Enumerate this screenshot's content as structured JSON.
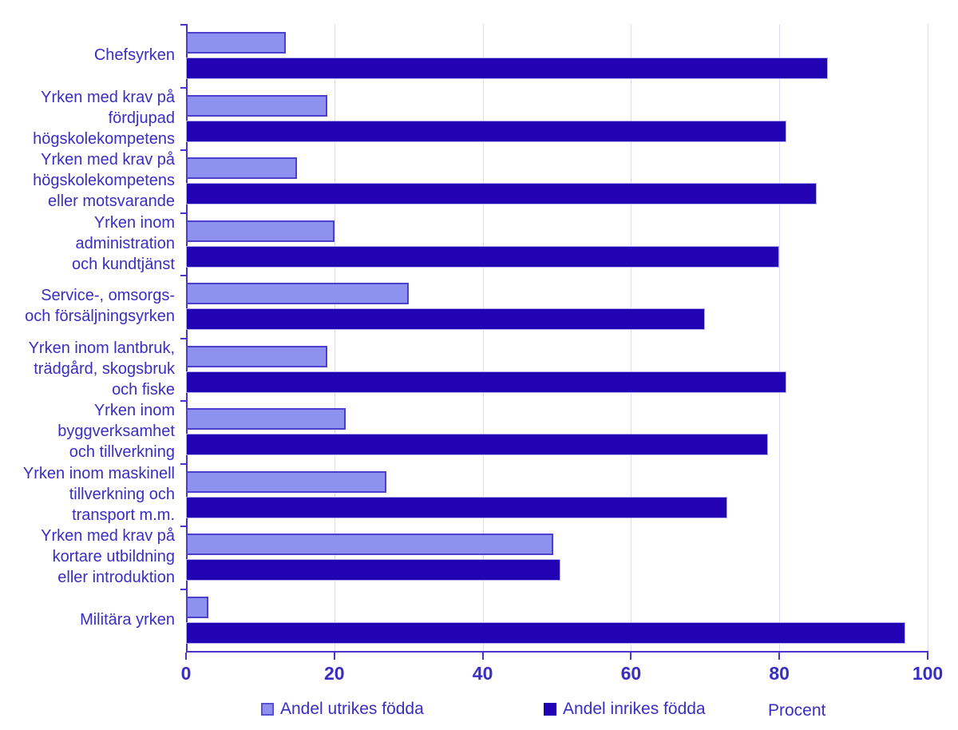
{
  "chart_data": {
    "type": "bar",
    "orientation": "horizontal",
    "title": "",
    "categories": [
      "Chefsyrken",
      "Yrken med krav på\nfördjupad\nhögskolekompetens",
      "Yrken med krav på\nhögskolekompetens\neller motsvarande",
      "Yrken inom\nadministration\noch kundtjänst",
      "Service-, omsorgs-\noch försäljningsyrken",
      "Yrken inom lantbruk,\nträdgård, skogsbruk\noch fiske",
      "Yrken inom\nbyggverksamhet\noch tillverkning",
      "Yrken inom maskinell\ntillverkning och\ntransport m.m.",
      "Yrken med krav på\nkortare utbildning\neller introduktion",
      "Militära yrken"
    ],
    "series": [
      {
        "name": "Andel utrikes födda",
        "color": "#8e91ee",
        "border_color": "#4b40ce",
        "values": [
          13.5,
          19,
          15,
          20,
          30,
          19,
          21.5,
          27,
          49.5,
          3
        ]
      },
      {
        "name": "Andel inrikes födda",
        "color": "#2103b4",
        "border_color": "#b3afec",
        "values": [
          86.5,
          81,
          85,
          80,
          70,
          81,
          78.5,
          73,
          50.5,
          97
        ]
      }
    ],
    "xlabel": "Procent",
    "ylabel": "",
    "xlim": [
      0,
      100
    ],
    "xticks": [
      0,
      20,
      40,
      60,
      80,
      100
    ],
    "grid": true,
    "legend_position": "bottom"
  },
  "colors": {
    "text": "#3a2dc4",
    "axis": "#4836cb",
    "gridline": "#dedcf1",
    "background": "#ffffff"
  }
}
